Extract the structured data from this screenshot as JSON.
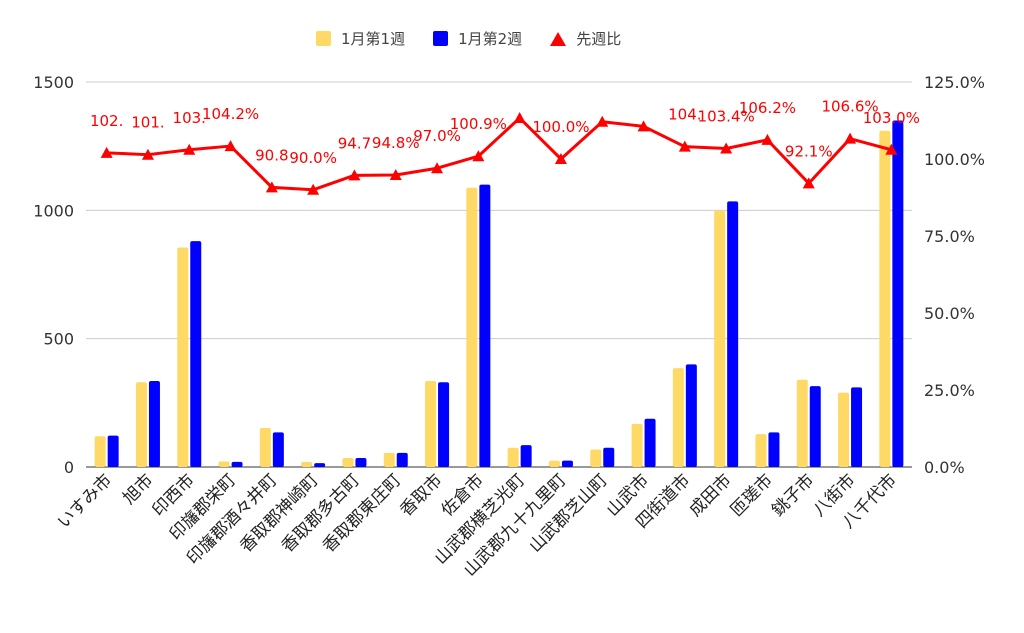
{
  "chart_data": {
    "type": "bar",
    "categories": [
      "いすみ市",
      "旭市",
      "印西市",
      "印旛郡栄町",
      "印旛郡酒々井町",
      "香取郡神崎町",
      "香取郡多古町",
      "香取郡東庄町",
      "香取市",
      "佐倉市",
      "山武郡横芝光町",
      "山武郡九十九里町",
      "山武郡芝山町",
      "山武市",
      "四街道市",
      "成田市",
      "匝瑳市",
      "銚子市",
      "八街市",
      "八千代市"
    ],
    "series": [
      {
        "name": "1月第1週",
        "type": "bar",
        "axis": "left",
        "color": "#ffd966",
        "values": [
          120,
          330,
          855,
          22,
          152,
          20,
          35,
          55,
          335,
          1088,
          75,
          25,
          68,
          168,
          385,
          1000,
          128,
          340,
          290,
          1310
        ]
      },
      {
        "name": "1月第2週",
        "type": "bar",
        "axis": "left",
        "color": "#0000ff",
        "values": [
          122,
          335,
          880,
          20,
          135,
          15,
          35,
          55,
          330,
          1100,
          85,
          25,
          75,
          188,
          400,
          1035,
          135,
          315,
          310,
          1350
        ]
      },
      {
        "name": "先週比",
        "type": "line",
        "axis": "right",
        "color": "#ff0000",
        "marker": "triangle",
        "values": [
          102.0,
          101.4,
          103.0,
          104.2,
          90.8,
          90.0,
          94.7,
          94.8,
          97.0,
          100.9,
          113.3,
          100.0,
          112.1,
          110.6,
          104.0,
          103.4,
          106.2,
          92.1,
          106.6,
          103.0
        ],
        "labels": [
          "102.",
          "101.",
          "103.",
          "104.2%",
          "90.8",
          "90.0%",
          "94.7",
          "94.8%",
          "97.0%",
          "100.9%",
          "",
          "100.0%",
          "",
          "",
          "104.",
          "103.4%",
          "106.2%",
          "92.1%",
          "106.6%",
          "103.0%"
        ]
      }
    ],
    "y_left": {
      "min": 0,
      "max": 1500,
      "ticks": [
        0,
        500,
        1000,
        1500
      ],
      "tick_labels": [
        "0",
        "500",
        "1000",
        "1500"
      ]
    },
    "y_right": {
      "min": 0,
      "max": 125,
      "ticks": [
        0,
        25,
        50,
        75,
        100,
        125
      ],
      "tick_labels": [
        "0.0%",
        "25.0%",
        "50.0%",
        "75.0%",
        "100.0%",
        "125.0%"
      ]
    },
    "grid": true,
    "legend_position": "top"
  }
}
